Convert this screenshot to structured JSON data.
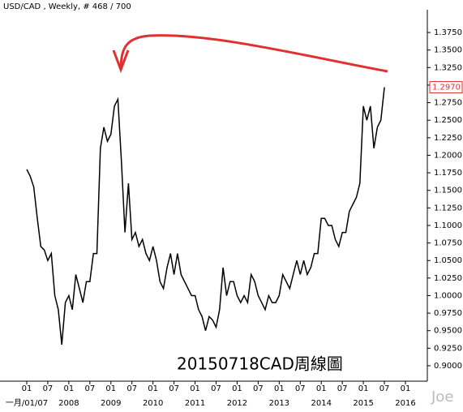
{
  "chart_data": {
    "type": "line",
    "title": "USD/CAD , Weekly, # 468 / 700",
    "annotation": "20150718CAD周線圖",
    "watermark": "Joe",
    "color": "#000000",
    "x": [
      "2007-01",
      "2007-02",
      "2007-03",
      "2007-04",
      "2007-05",
      "2007-06",
      "2007-07",
      "2007-08",
      "2007-09",
      "2007-10",
      "2007-11",
      "2007-12",
      "2008-01",
      "2008-02",
      "2008-03",
      "2008-04",
      "2008-05",
      "2008-06",
      "2008-07",
      "2008-08",
      "2008-09",
      "2008-10",
      "2008-11",
      "2008-12",
      "2009-01",
      "2009-02",
      "2009-03",
      "2009-04",
      "2009-05",
      "2009-06",
      "2009-07",
      "2009-08",
      "2009-09",
      "2009-10",
      "2009-11",
      "2009-12",
      "2010-01",
      "2010-02",
      "2010-03",
      "2010-04",
      "2010-05",
      "2010-06",
      "2010-07",
      "2010-08",
      "2010-09",
      "2010-10",
      "2010-11",
      "2010-12",
      "2011-01",
      "2011-02",
      "2011-03",
      "2011-04",
      "2011-05",
      "2011-06",
      "2011-07",
      "2011-08",
      "2011-09",
      "2011-10",
      "2011-11",
      "2011-12",
      "2012-01",
      "2012-02",
      "2012-03",
      "2012-04",
      "2012-05",
      "2012-06",
      "2012-07",
      "2012-08",
      "2012-09",
      "2012-10",
      "2012-11",
      "2012-12",
      "2013-01",
      "2013-02",
      "2013-03",
      "2013-04",
      "2013-05",
      "2013-06",
      "2013-07",
      "2013-08",
      "2013-09",
      "2013-10",
      "2013-11",
      "2013-12",
      "2014-01",
      "2014-02",
      "2014-03",
      "2014-04",
      "2014-05",
      "2014-06",
      "2014-07",
      "2014-08",
      "2014-09",
      "2014-10",
      "2014-11",
      "2014-12",
      "2015-01",
      "2015-02",
      "2015-03",
      "2015-04",
      "2015-05",
      "2015-06",
      "2015-07"
    ],
    "values": [
      1.18,
      1.17,
      1.155,
      1.11,
      1.07,
      1.065,
      1.05,
      1.06,
      1.0,
      0.98,
      0.93,
      0.99,
      1.0,
      0.98,
      1.03,
      1.01,
      0.99,
      1.02,
      1.02,
      1.06,
      1.06,
      1.21,
      1.24,
      1.22,
      1.23,
      1.27,
      1.28,
      1.19,
      1.09,
      1.16,
      1.08,
      1.09,
      1.07,
      1.08,
      1.06,
      1.05,
      1.07,
      1.05,
      1.02,
      1.01,
      1.04,
      1.06,
      1.03,
      1.06,
      1.03,
      1.02,
      1.01,
      1.0,
      1.0,
      0.98,
      0.97,
      0.95,
      0.97,
      0.965,
      0.955,
      0.98,
      1.04,
      1.0,
      1.02,
      1.02,
      1.0,
      0.99,
      1.0,
      0.99,
      1.03,
      1.02,
      1.0,
      0.99,
      0.98,
      1.0,
      0.99,
      0.99,
      1.0,
      1.03,
      1.02,
      1.01,
      1.03,
      1.05,
      1.03,
      1.05,
      1.03,
      1.04,
      1.06,
      1.06,
      1.11,
      1.11,
      1.1,
      1.1,
      1.08,
      1.07,
      1.09,
      1.09,
      1.12,
      1.13,
      1.14,
      1.16,
      1.27,
      1.25,
      1.27,
      1.21,
      1.24,
      1.25,
      1.297
    ],
    "ylim": [
      0.878,
      1.404
    ],
    "yticks": [
      {
        "value": 0.9,
        "label": "0.9000"
      },
      {
        "value": 0.925,
        "label": "0.9250"
      },
      {
        "value": 0.95,
        "label": "0.9500"
      },
      {
        "value": 0.975,
        "label": "0.9750"
      },
      {
        "value": 1.0,
        "label": "1.0000"
      },
      {
        "value": 1.025,
        "label": "1.0250"
      },
      {
        "value": 1.05,
        "label": "1.0500"
      },
      {
        "value": 1.075,
        "label": "1.0750"
      },
      {
        "value": 1.1,
        "label": "1.1000"
      },
      {
        "value": 1.125,
        "label": "1.1250"
      },
      {
        "value": 1.15,
        "label": "1.1500"
      },
      {
        "value": 1.175,
        "label": "1.1750"
      },
      {
        "value": 1.2,
        "label": "1.2000"
      },
      {
        "value": 1.225,
        "label": "1.2250"
      },
      {
        "value": 1.25,
        "label": "1.2500"
      },
      {
        "value": 1.275,
        "label": "1.2750"
      },
      {
        "value": 1.3,
        "label": "1.3000"
      },
      {
        "value": 1.325,
        "label": "1.3250"
      },
      {
        "value": 1.35,
        "label": "1.3500"
      },
      {
        "value": 1.375,
        "label": "1.3750"
      }
    ],
    "xticks": [
      {
        "value": "2007-01",
        "label": "01"
      },
      {
        "value": "2007-07",
        "label": "07"
      },
      {
        "value": "2008-01",
        "label": "01"
      },
      {
        "value": "2008-07",
        "label": "07"
      },
      {
        "value": "2009-01",
        "label": "01"
      },
      {
        "value": "2009-07",
        "label": "07"
      },
      {
        "value": "2010-01",
        "label": "01"
      },
      {
        "value": "2010-07",
        "label": "07"
      },
      {
        "value": "2011-01",
        "label": "01"
      },
      {
        "value": "2011-07",
        "label": "07"
      },
      {
        "value": "2012-01",
        "label": "01"
      },
      {
        "value": "2012-07",
        "label": "07"
      },
      {
        "value": "2013-01",
        "label": "01"
      },
      {
        "value": "2013-07",
        "label": "07"
      },
      {
        "value": "2014-01",
        "label": "01"
      },
      {
        "value": "2014-07",
        "label": "07"
      },
      {
        "value": "2015-01",
        "label": "01"
      },
      {
        "value": "2015-07",
        "label": "07"
      },
      {
        "value": "2016-01",
        "label": "01"
      }
    ],
    "x_year_labels": [
      {
        "value": "2007-01",
        "label": "一月/01/07"
      },
      {
        "value": "2008-01",
        "label": "2008"
      },
      {
        "value": "2009-01",
        "label": "2009"
      },
      {
        "value": "2010-01",
        "label": "2010"
      },
      {
        "value": "2011-01",
        "label": "2011"
      },
      {
        "value": "2012-01",
        "label": "2012"
      },
      {
        "value": "2013-01",
        "label": "2013"
      },
      {
        "value": "2014-01",
        "label": "2014"
      },
      {
        "value": "2015-01",
        "label": "2015"
      },
      {
        "value": "2016-01",
        "label": "2016"
      }
    ],
    "price_marker": {
      "value": 1.297,
      "label": "1.2970",
      "color": "#e03030"
    }
  }
}
